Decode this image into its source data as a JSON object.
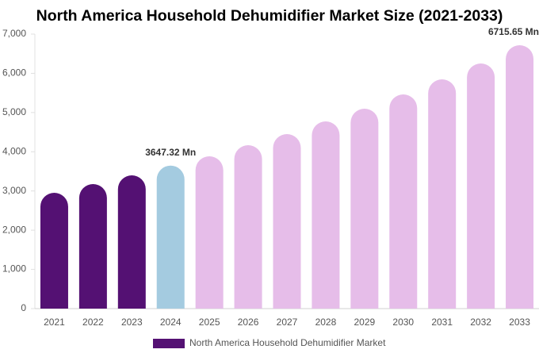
{
  "chart_data": {
    "type": "bar",
    "title": "North America Household Dehumidifier Market Size (2021-2033)",
    "categories": [
      "2021",
      "2022",
      "2023",
      "2024",
      "2025",
      "2026",
      "2027",
      "2028",
      "2029",
      "2030",
      "2031",
      "2032",
      "2033"
    ],
    "series": [
      {
        "name": "North America Household Dehumidifier Market",
        "color": "#541173",
        "colors": [
          "#541173",
          "#541173",
          "#541173",
          "#a4cbe0",
          "#e6bde9",
          "#e6bde9",
          "#e6bde9",
          "#e6bde9",
          "#e6bde9",
          "#e6bde9",
          "#e6bde9",
          "#e6bde9",
          "#e6bde9"
        ],
        "values": [
          2954,
          3176,
          3399,
          3647.32,
          3884,
          4168,
          4451,
          4774,
          5098,
          5462,
          5847,
          6251,
          6715.65
        ],
        "value_labels": [
          null,
          null,
          null,
          "3647.32 Mn",
          null,
          null,
          null,
          null,
          null,
          null,
          null,
          null,
          "6715.65 Mn"
        ]
      }
    ],
    "ylim": [
      0,
      7000
    ],
    "yticks": [
      0,
      {
        "value": 1000,
        "label": "1,000"
      },
      {
        "value": 2000,
        "label": "2,000"
      },
      {
        "value": 3000,
        "label": "3,000"
      },
      {
        "value": 4000,
        "label": "4,000"
      },
      {
        "value": 5000,
        "label": "5,000"
      },
      {
        "value": 6000,
        "label": "6,000"
      },
      {
        "value": 7000,
        "label": "7,000"
      }
    ],
    "legend": "bottom"
  }
}
